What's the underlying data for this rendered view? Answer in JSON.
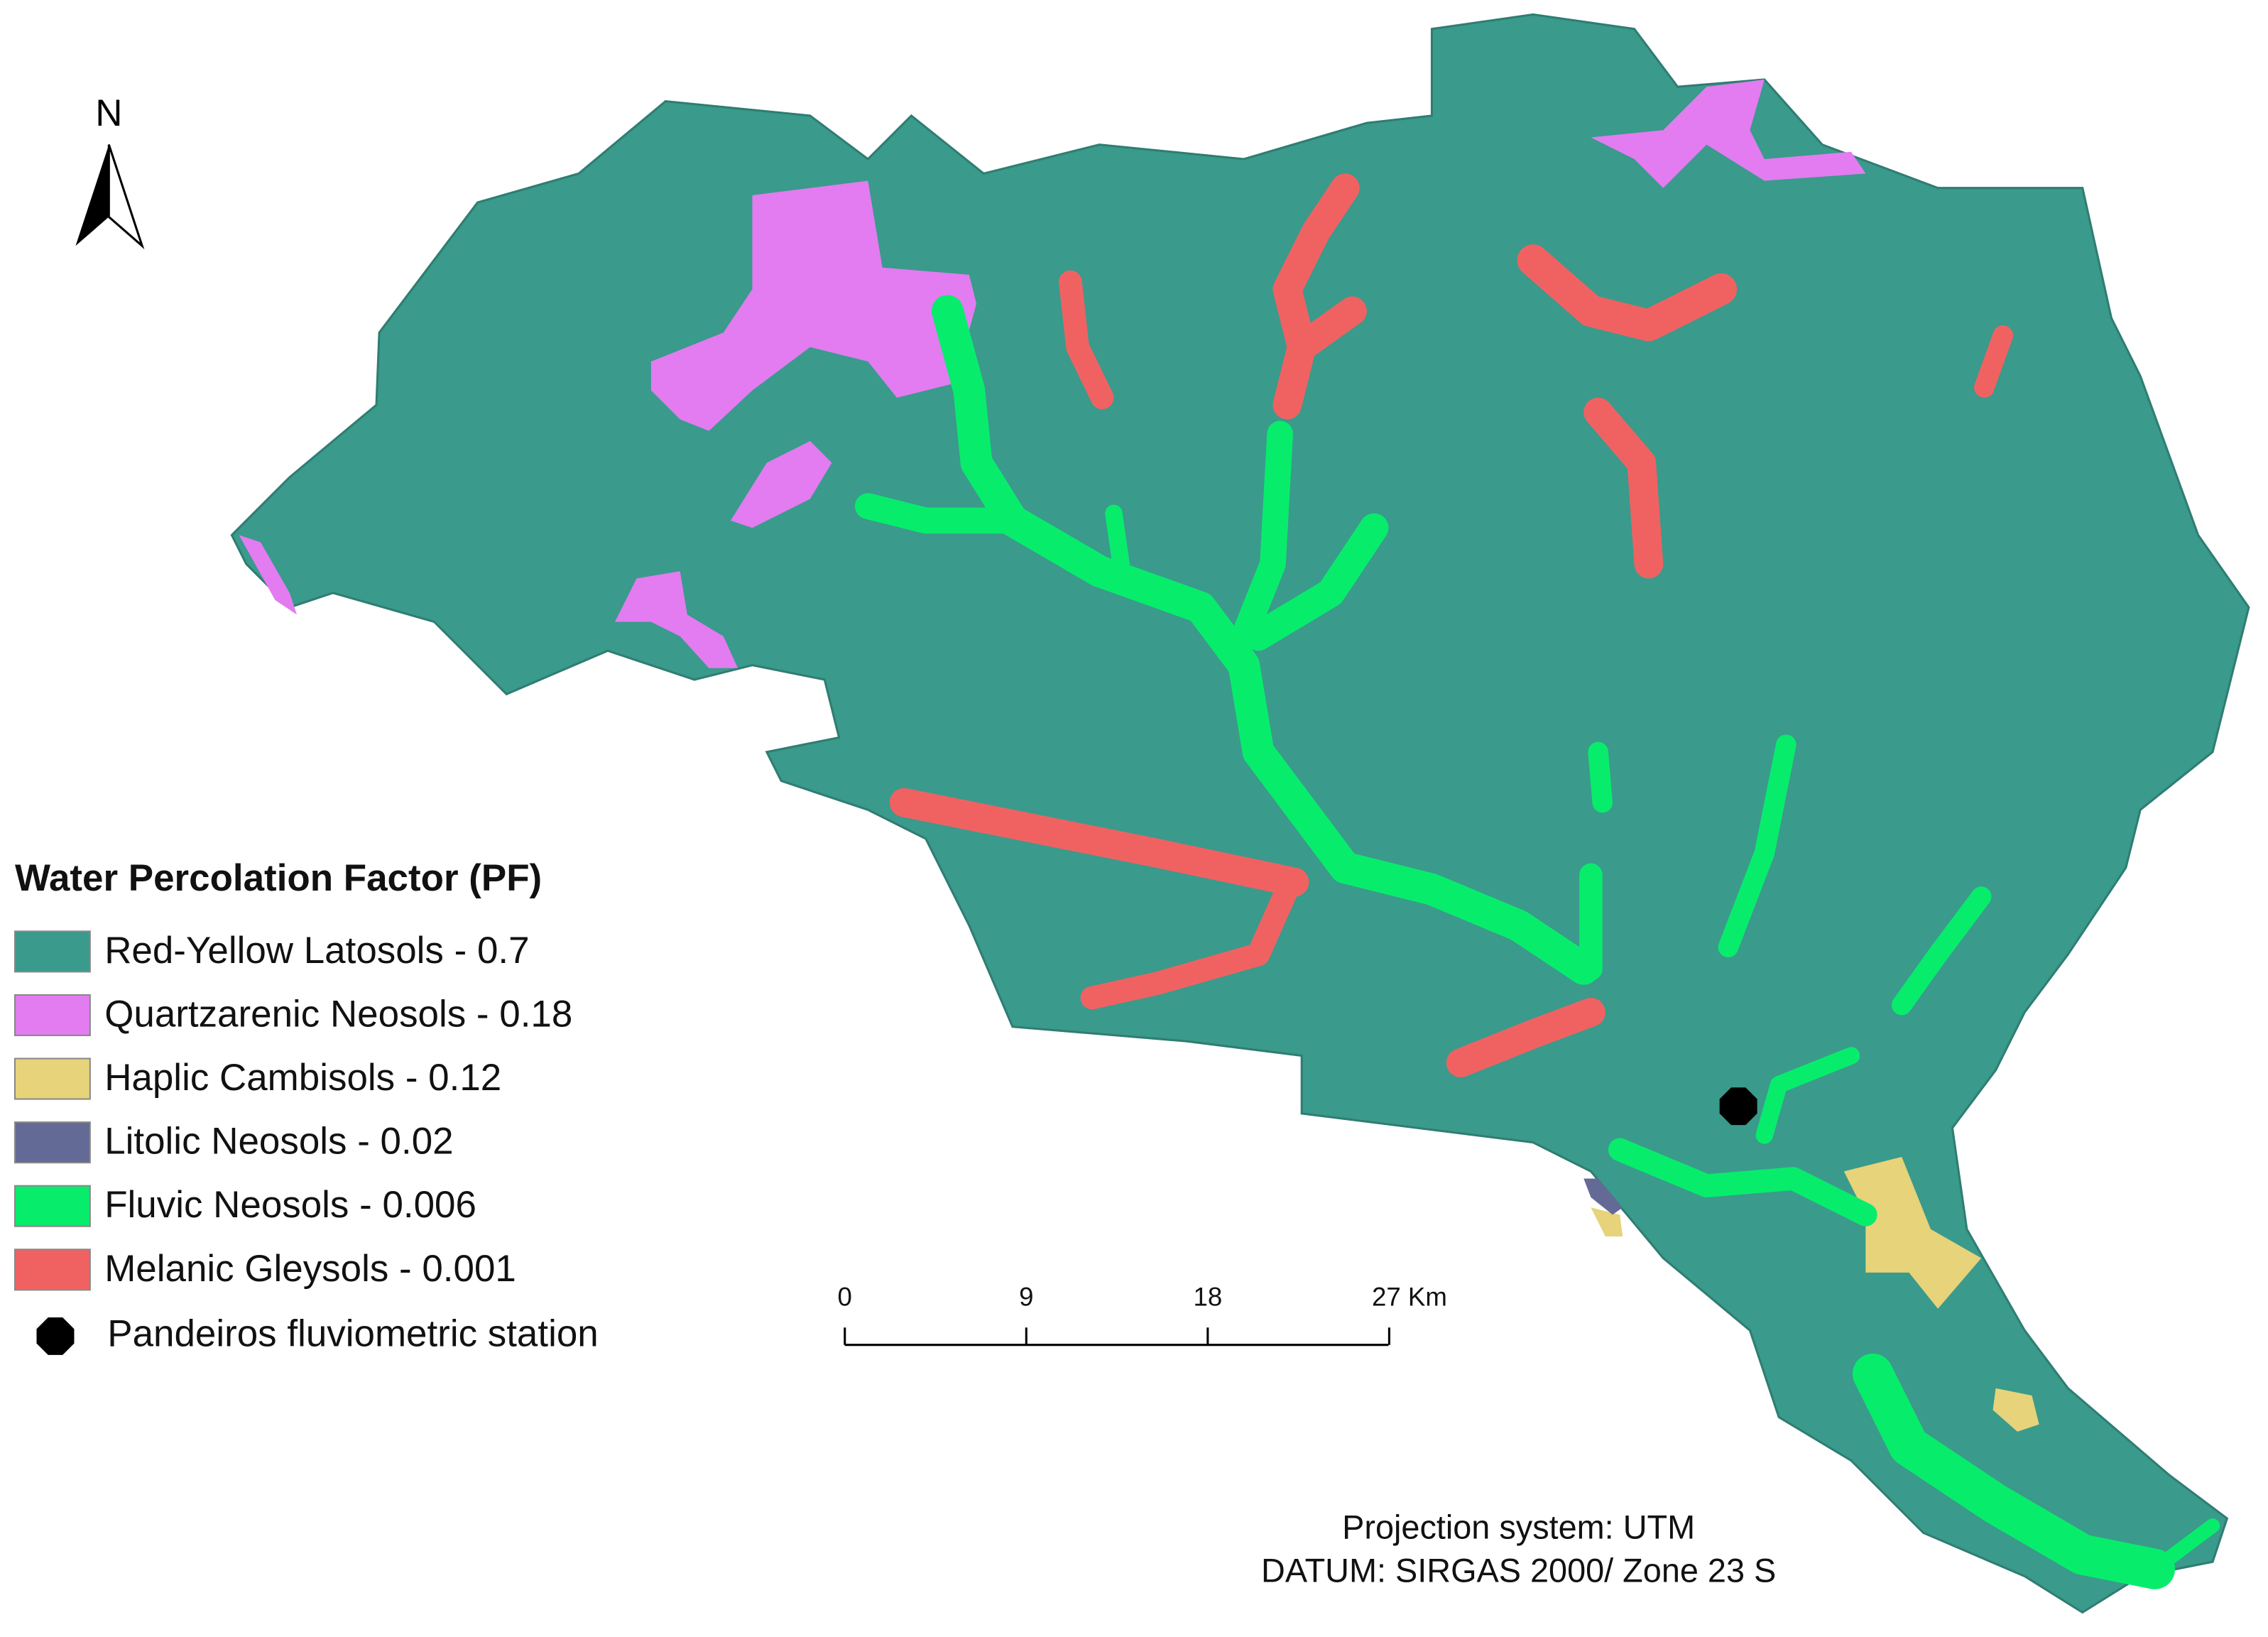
{
  "north_label": "N",
  "legend": {
    "title": "Water Percolation Factor (PF)",
    "items": [
      {
        "label": "Red-Yellow Latosols - 0.7",
        "color": "#3a9a8c"
      },
      {
        "label": "Quartzarenic Neosols - 0.18",
        "color": "#e27cf0"
      },
      {
        "label": "Haplic Cambisols - 0.12",
        "color": "#e6d37a"
      },
      {
        "label": "Litolic Neosols - 0.02",
        "color": "#646a96"
      },
      {
        "label": "Fluvic Neosols - 0.006",
        "color": "#08ec6c"
      },
      {
        "label": "Melanic Gleysols - 0.001",
        "color": "#f06262"
      },
      {
        "label": "Pandeiros fluviometric station",
        "color": "#000000"
      }
    ]
  },
  "scale_bar": {
    "labels": [
      "0",
      "9",
      "18",
      "27 Km"
    ]
  },
  "projection": [
    "Projection system: UTM",
    "DATUM: SIRGAS 2000/ Zone 23 S"
  ]
}
